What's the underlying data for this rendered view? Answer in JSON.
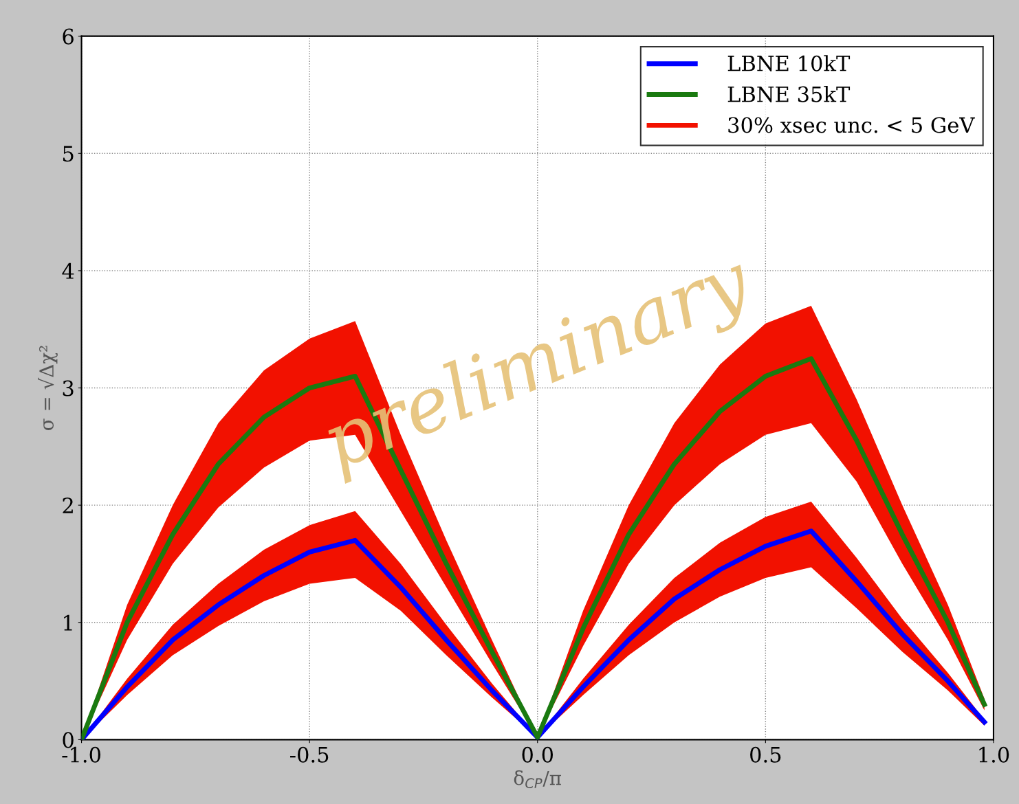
{
  "chart_data": {
    "type": "line",
    "xlabel": "δ$_{CP}$/π",
    "ylabel": "σ = √Δχ²",
    "x": [
      -1,
      -0.9,
      -0.8,
      -0.7,
      -0.6,
      -0.5,
      -0.4,
      -0.3,
      -0.2,
      -0.1,
      0,
      0.1,
      0.2,
      0.3,
      0.4,
      0.5,
      0.6,
      0.7,
      0.8,
      0.9,
      0.98
    ],
    "series": [
      {
        "name": "LBNE 10kT",
        "color": "#0000ff",
        "values": [
          0,
          0.45,
          0.85,
          1.15,
          1.4,
          1.6,
          1.7,
          1.3,
          0.85,
          0.42,
          0.02,
          0.45,
          0.85,
          1.2,
          1.45,
          1.65,
          1.78,
          1.35,
          0.9,
          0.5,
          0.15
        ],
        "upper": [
          0,
          0.52,
          0.98,
          1.33,
          1.62,
          1.83,
          1.95,
          1.5,
          0.98,
          0.48,
          0.02,
          0.52,
          0.98,
          1.38,
          1.68,
          1.9,
          2.03,
          1.55,
          1.03,
          0.57,
          0.17
        ],
        "lower": [
          0,
          0.38,
          0.72,
          0.97,
          1.18,
          1.33,
          1.38,
          1.1,
          0.72,
          0.36,
          0.02,
          0.38,
          0.72,
          1.0,
          1.22,
          1.38,
          1.47,
          1.12,
          0.75,
          0.42,
          0.12
        ]
      },
      {
        "name": "LBNE 35kT",
        "color": "#1a7a10",
        "values": [
          0,
          1.0,
          1.75,
          2.35,
          2.75,
          3.0,
          3.1,
          2.3,
          1.5,
          0.75,
          0.02,
          0.95,
          1.75,
          2.35,
          2.8,
          3.1,
          3.25,
          2.55,
          1.75,
          1.0,
          0.3
        ],
        "upper": [
          0,
          1.15,
          2.0,
          2.7,
          3.15,
          3.42,
          3.57,
          2.6,
          1.7,
          0.85,
          0.02,
          1.1,
          2.0,
          2.7,
          3.2,
          3.55,
          3.7,
          2.9,
          2.0,
          1.15,
          0.35
        ],
        "lower": [
          0,
          0.85,
          1.5,
          1.98,
          2.32,
          2.55,
          2.6,
          1.95,
          1.3,
          0.65,
          0.02,
          0.8,
          1.5,
          2.0,
          2.35,
          2.6,
          2.7,
          2.2,
          1.5,
          0.85,
          0.25
        ]
      },
      {
        "name": "30% xsec unc. < 5 GeV",
        "type": "area",
        "color": "#f21100",
        "values": [
          null,
          null,
          null,
          null,
          null,
          null,
          null,
          null,
          null,
          null,
          null,
          null,
          null,
          null,
          null,
          null,
          null,
          null,
          null,
          null,
          null
        ]
      }
    ],
    "xlim": [
      -1,
      1
    ],
    "xticks": [
      {
        "value": -1,
        "label": "-1.0"
      },
      {
        "value": -0.5,
        "label": "-0.5"
      },
      {
        "value": 0,
        "label": "0.0"
      },
      {
        "value": 0.5,
        "label": "0.5"
      },
      {
        "value": 1,
        "label": "1.0"
      }
    ],
    "ylim": [
      0,
      6
    ],
    "yticks": [
      0,
      1,
      2,
      3,
      4,
      5,
      6
    ],
    "grid": true,
    "legend": "top right",
    "line_style": "solid",
    "annotations": [
      "preliminary"
    ]
  }
}
